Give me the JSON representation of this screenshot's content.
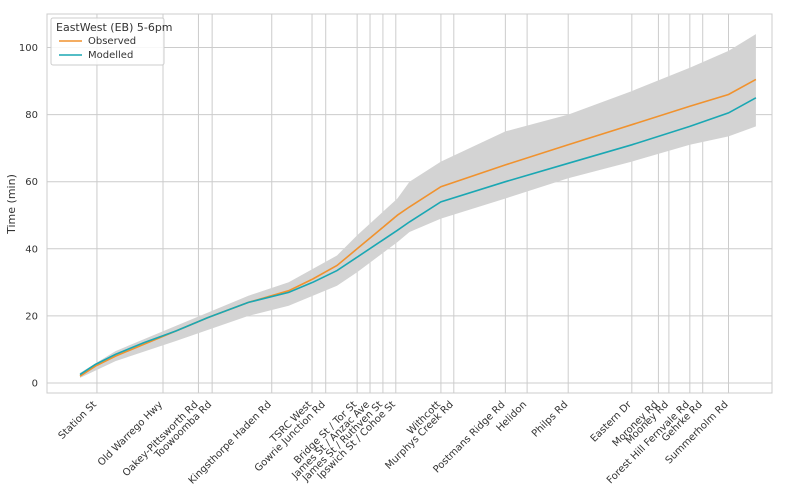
{
  "chart_data": {
    "type": "line",
    "ylabel": "Time (min)",
    "xlabel": "",
    "ylim": [
      -3,
      110
    ],
    "yticks": [
      0,
      20,
      40,
      60,
      80,
      100
    ],
    "grid": true,
    "legend": {
      "title": "EastWest (EB) 5-6pm",
      "position": "top-left"
    },
    "stations": [
      {
        "name": "Station St",
        "x": 0.62
      },
      {
        "name": "Old Warrego Hwy",
        "x": 1.44
      },
      {
        "name": "Oakey-Pittsworth Rd",
        "x": 1.88
      },
      {
        "name": "Toowoomba Rd",
        "x": 2.05
      },
      {
        "name": "Kingsthorpe Haden Rd",
        "x": 2.79
      },
      {
        "name": "TSRC West",
        "x": 3.29
      },
      {
        "name": "Gowrie Junction Rd",
        "x": 3.46
      },
      {
        "name": "Bridge St / Tor St",
        "x": 3.85
      },
      {
        "name": "James St / Anzac Ave",
        "x": 4.01
      },
      {
        "name": "James St / Ruthven St",
        "x": 4.17
      },
      {
        "name": "Ipswich St / Cohoe St",
        "x": 4.33
      },
      {
        "name": "Withcott",
        "x": 4.89
      },
      {
        "name": "Murphys Creek Rd",
        "x": 5.05
      },
      {
        "name": "Postmans Ridge Rd",
        "x": 5.69
      },
      {
        "name": "Helidon",
        "x": 5.96
      },
      {
        "name": "Philps Rd",
        "x": 6.47
      },
      {
        "name": "Eastern Dr",
        "x": 7.26
      },
      {
        "name": "Moroney Rd",
        "x": 7.59
      },
      {
        "name": "Mooney Rd",
        "x": 7.72
      },
      {
        "name": "Forest Hill Fernvale Rd",
        "x": 7.98
      },
      {
        "name": "Gehrke Rd",
        "x": 8.14
      },
      {
        "name": "Summerholm Rd",
        "x": 8.46
      }
    ],
    "xlim": [
      0,
      9
    ],
    "series": [
      {
        "name": "Observed",
        "color": "#f0922e",
        "points": [
          [
            0.41,
            2.0
          ],
          [
            0.6,
            5.0
          ],
          [
            0.85,
            8.0
          ],
          [
            1.2,
            11.5
          ],
          [
            1.6,
            15.5
          ],
          [
            2.0,
            19.5
          ],
          [
            2.5,
            24.0
          ],
          [
            3.0,
            27.5
          ],
          [
            3.3,
            31.0
          ],
          [
            3.6,
            35.0
          ],
          [
            3.85,
            40.0
          ],
          [
            4.1,
            45.0
          ],
          [
            4.35,
            50.0
          ],
          [
            4.5,
            52.5
          ],
          [
            4.89,
            58.5
          ],
          [
            5.69,
            65.0
          ],
          [
            6.47,
            71.0
          ],
          [
            7.26,
            77.0
          ],
          [
            7.98,
            82.5
          ],
          [
            8.46,
            86.0
          ],
          [
            8.8,
            90.5
          ]
        ]
      },
      {
        "name": "Modelled",
        "color": "#1aa7b3",
        "points": [
          [
            0.41,
            2.5
          ],
          [
            0.6,
            5.5
          ],
          [
            0.85,
            8.5
          ],
          [
            1.2,
            12.0
          ],
          [
            1.6,
            15.5
          ],
          [
            2.0,
            19.5
          ],
          [
            2.5,
            24.0
          ],
          [
            3.0,
            27.0
          ],
          [
            3.3,
            30.0
          ],
          [
            3.6,
            33.5
          ],
          [
            3.85,
            37.5
          ],
          [
            4.1,
            41.5
          ],
          [
            4.35,
            45.5
          ],
          [
            4.5,
            48.0
          ],
          [
            4.89,
            54.0
          ],
          [
            5.69,
            60.0
          ],
          [
            6.47,
            65.5
          ],
          [
            7.26,
            71.0
          ],
          [
            7.98,
            76.5
          ],
          [
            8.46,
            80.5
          ],
          [
            8.8,
            85.0
          ]
        ]
      }
    ],
    "band": {
      "color": "#d3d3d3",
      "upper": [
        [
          0.41,
          3.0
        ],
        [
          0.85,
          9.5
        ],
        [
          1.6,
          17.0
        ],
        [
          2.5,
          26.0
        ],
        [
          3.0,
          30.0
        ],
        [
          3.6,
          38.0
        ],
        [
          3.85,
          44.0
        ],
        [
          4.35,
          55.0
        ],
        [
          4.5,
          60.0
        ],
        [
          4.89,
          66.0
        ],
        [
          5.69,
          75.0
        ],
        [
          6.47,
          80.0
        ],
        [
          7.26,
          87.0
        ],
        [
          7.98,
          94.0
        ],
        [
          8.46,
          99.0
        ],
        [
          8.8,
          104.0
        ]
      ],
      "lower": [
        [
          0.41,
          1.5
        ],
        [
          0.85,
          6.5
        ],
        [
          1.6,
          12.5
        ],
        [
          2.5,
          20.0
        ],
        [
          3.0,
          23.0
        ],
        [
          3.6,
          29.0
        ],
        [
          3.85,
          33.0
        ],
        [
          4.35,
          42.0
        ],
        [
          4.5,
          45.0
        ],
        [
          4.89,
          49.0
        ],
        [
          5.69,
          55.0
        ],
        [
          6.47,
          61.0
        ],
        [
          7.26,
          66.0
        ],
        [
          7.98,
          71.0
        ],
        [
          8.46,
          73.5
        ],
        [
          8.8,
          76.5
        ]
      ]
    }
  }
}
